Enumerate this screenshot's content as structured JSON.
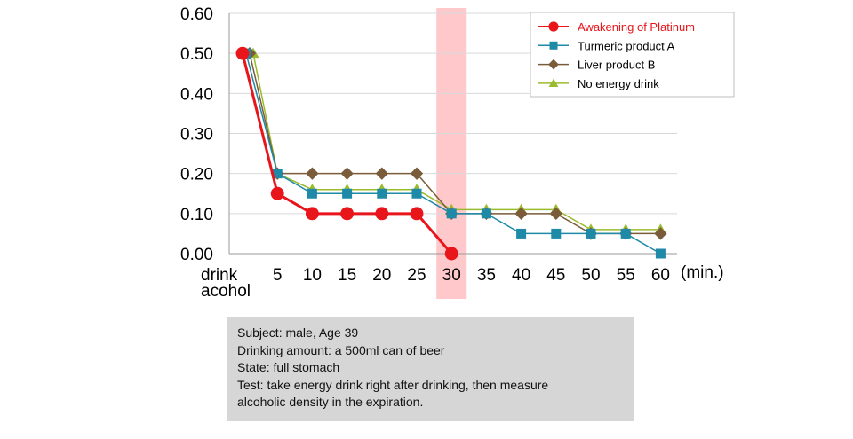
{
  "chart_data": {
    "type": "line",
    "categories": [
      "drink acohol",
      "5",
      "10",
      "15",
      "20",
      "25",
      "30",
      "35",
      "40",
      "45",
      "50",
      "55",
      "60"
    ],
    "x_unit_label": "(min.)",
    "zero_label_lines": [
      "drink",
      "acohol"
    ],
    "highlight_category": "30",
    "y_ticks": [
      "0.00",
      "0.10",
      "0.20",
      "0.30",
      "0.40",
      "0.50",
      "0.60"
    ],
    "ylim": [
      0,
      0.6
    ],
    "grid": true,
    "legend_position": "top-right",
    "series": [
      {
        "name": "Awakening of Platinum",
        "color": "#e8151b",
        "marker": "circle",
        "values": [
          0.5,
          0.15,
          0.1,
          0.1,
          0.1,
          0.1,
          0.0,
          null,
          null,
          null,
          null,
          null,
          null
        ]
      },
      {
        "name": "Turmeric product A",
        "color": "#1f8aa8",
        "marker": "square",
        "values": [
          0.5,
          0.2,
          0.15,
          0.15,
          0.15,
          0.15,
          0.1,
          0.1,
          0.05,
          0.05,
          0.05,
          0.05,
          0.0
        ]
      },
      {
        "name": "Liver product B",
        "color": "#7a5c3a",
        "marker": "diamond",
        "values": [
          0.5,
          0.2,
          0.2,
          0.2,
          0.2,
          0.2,
          0.1,
          0.1,
          0.1,
          0.1,
          0.05,
          0.05,
          0.05
        ]
      },
      {
        "name": "No energy drink",
        "color": "#9bbb2e",
        "marker": "triangle",
        "values": [
          0.5,
          0.2,
          0.16,
          0.16,
          0.16,
          0.16,
          0.11,
          0.11,
          0.11,
          0.11,
          0.06,
          0.06,
          0.06
        ]
      }
    ],
    "colors": {
      "highlight_band": "#ffc9cc",
      "highlight_text": "#e8151b",
      "grid": "#d9d9d9",
      "axis": "#999999"
    }
  },
  "info_box": {
    "lines": [
      "Subject: male, Age 39",
      "Drinking amount: a 500ml can of beer",
      "State: full stomach",
      "Test: take energy drink right after drinking, then measure",
      "alcoholic density in the expiration."
    ]
  }
}
